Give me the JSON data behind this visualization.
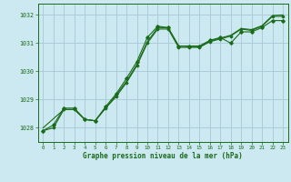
{
  "title": "Graphe pression niveau de la mer (hPa)",
  "background_color": "#cce8f0",
  "grid_color": "#aaccd8",
  "line_color": "#1a6b1a",
  "xlim": [
    -0.5,
    23.5
  ],
  "ylim": [
    1027.5,
    1032.4
  ],
  "yticks": [
    1028,
    1029,
    1030,
    1031,
    1032
  ],
  "xticks": [
    0,
    1,
    2,
    3,
    4,
    5,
    6,
    7,
    8,
    9,
    10,
    11,
    12,
    13,
    14,
    15,
    16,
    17,
    18,
    19,
    20,
    21,
    22,
    23
  ],
  "series": [
    [
      1027.9,
      1028.1,
      1028.7,
      1028.7,
      1028.3,
      1028.25,
      1028.75,
      1029.2,
      1029.75,
      1030.35,
      1031.2,
      1031.6,
      1031.55,
      1030.9,
      1030.9,
      1030.9,
      1031.1,
      1031.2,
      1031.0,
      1031.4,
      1031.4,
      1031.55,
      1031.8,
      1031.8
    ],
    [
      1027.9,
      1028.0,
      1028.65,
      1028.65,
      1028.3,
      1028.25,
      1028.7,
      1029.1,
      1029.6,
      1030.2,
      1031.0,
      1031.5,
      1031.5,
      1030.85,
      1030.85,
      1030.85,
      1031.05,
      1031.15,
      1031.25,
      1031.5,
      1031.45,
      1031.6,
      1031.95,
      1031.95
    ],
    [
      1028.0,
      null,
      1028.65,
      1028.65,
      1028.3,
      1028.25,
      1028.7,
      1029.15,
      1029.65,
      1030.25,
      1031.05,
      1031.55,
      1031.55,
      1030.9,
      1030.88,
      1030.88,
      1031.08,
      1031.18,
      1031.28,
      1031.52,
      1031.48,
      1031.62,
      1031.98,
      1032.0
    ]
  ]
}
